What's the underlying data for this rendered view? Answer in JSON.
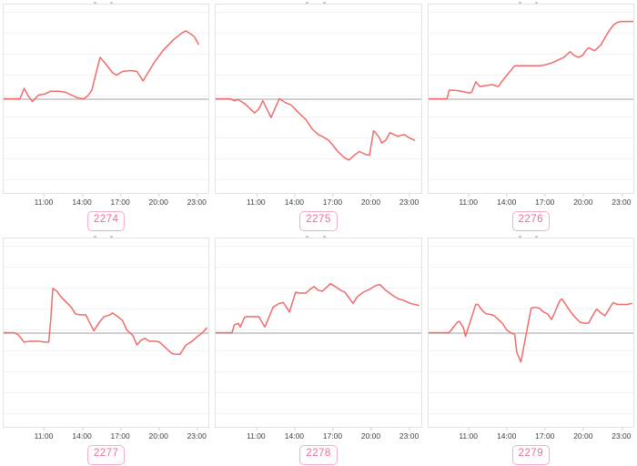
{
  "page": {
    "background": "#ffffff",
    "grid": "3 columns x 2 rows of sparkline charts"
  },
  "colors": {
    "line": "#f06b6b",
    "baseline": "#d0d0d0",
    "gridline": "#f2f2f2",
    "plot_border": "#e3e3e3",
    "axis_text": "#3f3f3f",
    "badge_border": "#f6adca",
    "badge_text": "#e96f9e"
  },
  "axis": {
    "tick_labels": [
      "11:00",
      "14:00",
      "17:00",
      "20:00",
      "23:00"
    ],
    "tick_positions_pct": [
      19.8,
      38.3,
      56.8,
      75.3,
      93.8
    ],
    "x_range_hours": [
      7.8,
      24.0
    ],
    "y_axis_labels_visible": false
  },
  "chart_data": [
    {
      "type": "line",
      "label": "2274",
      "x_ticks": [
        "11:00",
        "14:00",
        "17:00",
        "20:00",
        "23:00"
      ],
      "baseline": 0,
      "y_unit": "percent of plot half-height relative to gray baseline",
      "points": [
        [
          0,
          0
        ],
        [
          8,
          0
        ],
        [
          10,
          11
        ],
        [
          12,
          3
        ],
        [
          14,
          -3
        ],
        [
          17,
          4
        ],
        [
          20,
          5
        ],
        [
          23,
          8
        ],
        [
          27,
          8
        ],
        [
          30,
          7
        ],
        [
          33,
          4
        ],
        [
          36,
          1
        ],
        [
          39,
          0
        ],
        [
          41,
          3
        ],
        [
          43,
          9
        ],
        [
          47,
          44
        ],
        [
          49,
          39
        ],
        [
          53,
          28
        ],
        [
          55,
          25
        ],
        [
          58,
          29
        ],
        [
          62,
          30
        ],
        [
          65,
          29
        ],
        [
          68,
          19
        ],
        [
          73,
          37
        ],
        [
          78,
          52
        ],
        [
          83,
          63
        ],
        [
          87,
          70
        ],
        [
          89,
          72
        ],
        [
          93,
          66
        ],
        [
          95,
          58
        ]
      ]
    },
    {
      "type": "line",
      "label": "2275",
      "x_ticks": [
        "11:00",
        "14:00",
        "17:00",
        "20:00",
        "23:00"
      ],
      "baseline": 0,
      "y_unit": "percent of plot half-height relative to gray baseline",
      "points": [
        [
          0,
          0
        ],
        [
          7,
          0
        ],
        [
          9,
          -2
        ],
        [
          11,
          -1
        ],
        [
          14,
          -5
        ],
        [
          16,
          -9
        ],
        [
          19,
          -15
        ],
        [
          21,
          -11
        ],
        [
          23,
          -2
        ],
        [
          27,
          -20
        ],
        [
          31,
          0
        ],
        [
          34,
          -4
        ],
        [
          37,
          -7
        ],
        [
          41,
          -16
        ],
        [
          44,
          -22
        ],
        [
          47,
          -32
        ],
        [
          50,
          -38
        ],
        [
          52,
          -40
        ],
        [
          55,
          -44
        ],
        [
          57,
          -49
        ],
        [
          60,
          -57
        ],
        [
          63,
          -63
        ],
        [
          65,
          -65
        ],
        [
          67,
          -61
        ],
        [
          70,
          -56
        ],
        [
          71,
          -57
        ],
        [
          73,
          -59
        ],
        [
          75,
          -60
        ],
        [
          77,
          -34
        ],
        [
          78,
          -36
        ],
        [
          80,
          -42
        ],
        [
          81,
          -47
        ],
        [
          83,
          -44
        ],
        [
          85,
          -36
        ],
        [
          86,
          -37
        ],
        [
          89,
          -40
        ],
        [
          90,
          -39
        ],
        [
          92,
          -38
        ],
        [
          94,
          -41
        ],
        [
          97,
          -44
        ]
      ]
    },
    {
      "type": "line",
      "label": "2276",
      "x_ticks": [
        "11:00",
        "14:00",
        "17:00",
        "20:00",
        "23:00"
      ],
      "baseline": 0,
      "y_unit": "percent of plot half-height relative to gray baseline",
      "points": [
        [
          0,
          0
        ],
        [
          9,
          0
        ],
        [
          10,
          9
        ],
        [
          13,
          9
        ],
        [
          16,
          8
        ],
        [
          20,
          6
        ],
        [
          21,
          7
        ],
        [
          23,
          18
        ],
        [
          25,
          13
        ],
        [
          28,
          14
        ],
        [
          31,
          15
        ],
        [
          34,
          13
        ],
        [
          37,
          22
        ],
        [
          42,
          35
        ],
        [
          45,
          35
        ],
        [
          50,
          35
        ],
        [
          54,
          35
        ],
        [
          57,
          36
        ],
        [
          60,
          38
        ],
        [
          63,
          41
        ],
        [
          66,
          44
        ],
        [
          68,
          48
        ],
        [
          69,
          50
        ],
        [
          71,
          46
        ],
        [
          73,
          44
        ],
        [
          75,
          46
        ],
        [
          77,
          52
        ],
        [
          78,
          54
        ],
        [
          80,
          52
        ],
        [
          81,
          51
        ],
        [
          84,
          57
        ],
        [
          86,
          65
        ],
        [
          88,
          72
        ],
        [
          90,
          78
        ],
        [
          92,
          81
        ],
        [
          94,
          82
        ],
        [
          100,
          82
        ]
      ]
    },
    {
      "type": "line",
      "label": "2277",
      "x_ticks": [
        "11:00",
        "14:00",
        "17:00",
        "20:00",
        "23:00"
      ],
      "baseline": 0,
      "y_unit": "percent of plot half-height relative to gray baseline",
      "points": [
        [
          0,
          0
        ],
        [
          5,
          0
        ],
        [
          7,
          -2
        ],
        [
          10,
          -10
        ],
        [
          13,
          -9
        ],
        [
          17,
          -9
        ],
        [
          20,
          -10
        ],
        [
          22,
          -10
        ],
        [
          23,
          15
        ],
        [
          24,
          47
        ],
        [
          26,
          44
        ],
        [
          28,
          38
        ],
        [
          33,
          27
        ],
        [
          35,
          20
        ],
        [
          37,
          19
        ],
        [
          40,
          19
        ],
        [
          44,
          2
        ],
        [
          47,
          12
        ],
        [
          49,
          17
        ],
        [
          52,
          19
        ],
        [
          53,
          21
        ],
        [
          55,
          18
        ],
        [
          58,
          13
        ],
        [
          60,
          3
        ],
        [
          63,
          -3
        ],
        [
          65,
          -13
        ],
        [
          67,
          -8
        ],
        [
          69,
          -6
        ],
        [
          71,
          -9
        ],
        [
          74,
          -9
        ],
        [
          76,
          -10
        ],
        [
          80,
          -18
        ],
        [
          82,
          -22
        ],
        [
          84,
          -23
        ],
        [
          86,
          -23
        ],
        [
          89,
          -13
        ],
        [
          92,
          -9
        ],
        [
          94,
          -5
        ],
        [
          97,
          0
        ],
        [
          99,
          5
        ]
      ]
    },
    {
      "type": "line",
      "label": "2278",
      "x_ticks": [
        "11:00",
        "14:00",
        "17:00",
        "20:00",
        "23:00"
      ],
      "baseline": 0,
      "y_unit": "percent of plot half-height relative to gray baseline",
      "points": [
        [
          0,
          0
        ],
        [
          8,
          0
        ],
        [
          9,
          8
        ],
        [
          11,
          10
        ],
        [
          12,
          6
        ],
        [
          14,
          16
        ],
        [
          15,
          17
        ],
        [
          18,
          17
        ],
        [
          21,
          17
        ],
        [
          24,
          6
        ],
        [
          28,
          27
        ],
        [
          31,
          31
        ],
        [
          33,
          32
        ],
        [
          36,
          22
        ],
        [
          39,
          43
        ],
        [
          41,
          42
        ],
        [
          44,
          42
        ],
        [
          46,
          46
        ],
        [
          48,
          49
        ],
        [
          50,
          45
        ],
        [
          52,
          44
        ],
        [
          56,
          52
        ],
        [
          59,
          48
        ],
        [
          61,
          45
        ],
        [
          63,
          43
        ],
        [
          66,
          34
        ],
        [
          67,
          31
        ],
        [
          69,
          38
        ],
        [
          72,
          43
        ],
        [
          75,
          46
        ],
        [
          78,
          50
        ],
        [
          80,
          51
        ],
        [
          83,
          45
        ],
        [
          86,
          40
        ],
        [
          89,
          36
        ],
        [
          92,
          34
        ],
        [
          95,
          31
        ],
        [
          97,
          30
        ],
        [
          99,
          29
        ]
      ]
    },
    {
      "type": "line",
      "label": "2279",
      "x_ticks": [
        "11:00",
        "14:00",
        "17:00",
        "20:00",
        "23:00"
      ],
      "baseline": 0,
      "y_unit": "percent of plot half-height relative to gray baseline",
      "points": [
        [
          0,
          0
        ],
        [
          10,
          0
        ],
        [
          14,
          11
        ],
        [
          15,
          12
        ],
        [
          17,
          5
        ],
        [
          18,
          -4
        ],
        [
          23,
          30
        ],
        [
          24,
          30
        ],
        [
          26,
          24
        ],
        [
          28,
          20
        ],
        [
          31,
          19
        ],
        [
          32,
          18
        ],
        [
          36,
          10
        ],
        [
          38,
          3
        ],
        [
          40,
          0
        ],
        [
          42,
          -2
        ],
        [
          43,
          -21
        ],
        [
          45,
          -31
        ],
        [
          50,
          26
        ],
        [
          52,
          27
        ],
        [
          54,
          26
        ],
        [
          56,
          22
        ],
        [
          58,
          20
        ],
        [
          60,
          14
        ],
        [
          64,
          34
        ],
        [
          65,
          36
        ],
        [
          68,
          26
        ],
        [
          70,
          20
        ],
        [
          72,
          15
        ],
        [
          74,
          11
        ],
        [
          76,
          10
        ],
        [
          78,
          10
        ],
        [
          81,
          22
        ],
        [
          82,
          25
        ],
        [
          84,
          21
        ],
        [
          86,
          18
        ],
        [
          90,
          32
        ],
        [
          92,
          30
        ],
        [
          94,
          30
        ],
        [
          97,
          30
        ],
        [
          99,
          31
        ]
      ]
    }
  ]
}
